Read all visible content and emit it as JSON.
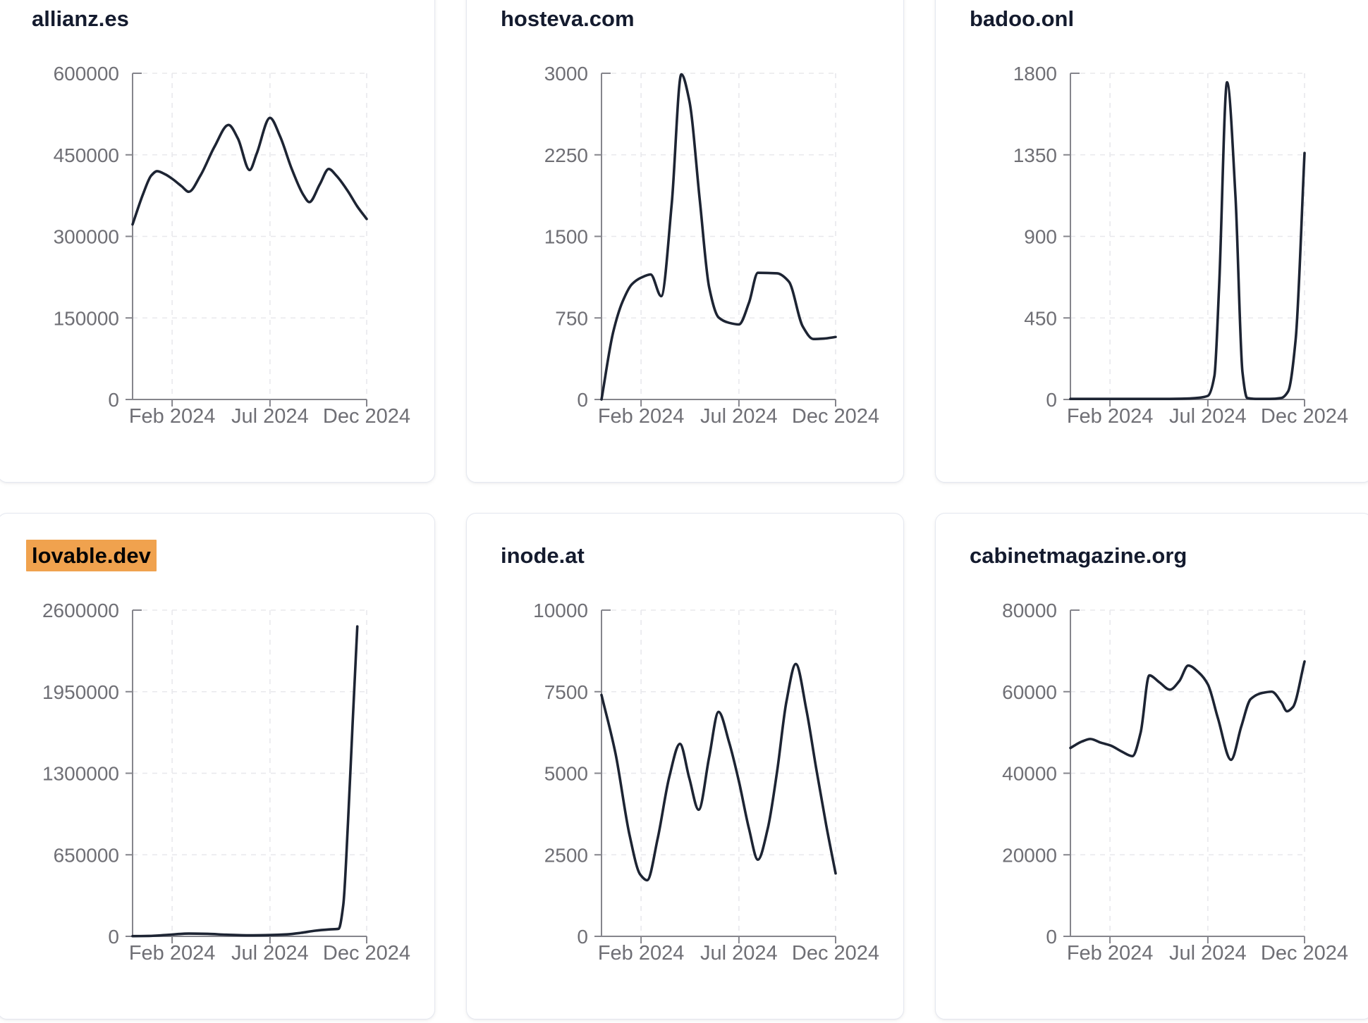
{
  "page": {
    "background": "#ffffff"
  },
  "theme": {
    "line_color": "#1d2433",
    "title_color": "#141b2e",
    "tick_label_color": "#6f6f75",
    "axis_color": "#85858c",
    "grid_color": "#e8e8ec",
    "card_border": "#e5e8f0",
    "highlight_background": "#f0a24e",
    "highlight_text": "#050505"
  },
  "chart_data": [
    {
      "type": "line",
      "title": "allianz.es",
      "title_highlighted": false,
      "xlabel": "",
      "ylabel": "",
      "legend": "none",
      "grid": "dashed",
      "x_ticks": [
        {
          "label": "Feb 2024",
          "pos": 0.169
        },
        {
          "label": "Jul 2024",
          "pos": 0.587
        },
        {
          "label": "Dec 2024",
          "pos": 1.0
        }
      ],
      "y_ticks": [
        0,
        150000,
        300000,
        450000,
        600000
      ],
      "y_max": 600000,
      "points": [
        [
          0,
          322000
        ],
        [
          0.045,
          378000
        ],
        [
          0.08,
          412000
        ],
        [
          0.105,
          420000
        ],
        [
          0.14,
          414000
        ],
        [
          0.169,
          406000
        ],
        [
          0.21,
          392000
        ],
        [
          0.24,
          382000
        ],
        [
          0.29,
          412000
        ],
        [
          0.35,
          465000
        ],
        [
          0.41,
          505000
        ],
        [
          0.45,
          480000
        ],
        [
          0.5,
          422000
        ],
        [
          0.53,
          452000
        ],
        [
          0.587,
          518000
        ],
        [
          0.63,
          484000
        ],
        [
          0.68,
          424000
        ],
        [
          0.73,
          376000
        ],
        [
          0.755,
          363000
        ],
        [
          0.8,
          396000
        ],
        [
          0.838,
          424000
        ],
        [
          0.87,
          412000
        ],
        [
          0.92,
          383000
        ],
        [
          0.96,
          355000
        ],
        [
          1,
          332000
        ]
      ]
    },
    {
      "type": "line",
      "title": "hosteva.com",
      "title_highlighted": false,
      "xlabel": "",
      "ylabel": "",
      "legend": "none",
      "grid": "dashed",
      "x_ticks": [
        {
          "label": "Feb 2024",
          "pos": 0.169
        },
        {
          "label": "Jul 2024",
          "pos": 0.587
        },
        {
          "label": "Dec 2024",
          "pos": 1.0
        }
      ],
      "y_ticks": [
        0,
        750,
        1500,
        2250,
        3000
      ],
      "y_max": 3000,
      "points": [
        [
          0,
          0
        ],
        [
          0.05,
          620
        ],
        [
          0.09,
          900
        ],
        [
          0.13,
          1060
        ],
        [
          0.169,
          1120
        ],
        [
          0.21,
          1150
        ],
        [
          0.255,
          950
        ],
        [
          0.3,
          1800
        ],
        [
          0.341,
          2990
        ],
        [
          0.375,
          2750
        ],
        [
          0.42,
          1830
        ],
        [
          0.46,
          1030
        ],
        [
          0.5,
          755
        ],
        [
          0.545,
          705
        ],
        [
          0.587,
          690
        ],
        [
          0.63,
          890
        ],
        [
          0.668,
          1165
        ],
        [
          0.75,
          1160
        ],
        [
          0.8,
          1085
        ],
        [
          0.86,
          670
        ],
        [
          0.905,
          556
        ],
        [
          0.95,
          560
        ],
        [
          1,
          575
        ]
      ]
    },
    {
      "type": "line",
      "title": "badoo.onl",
      "title_highlighted": false,
      "xlabel": "",
      "ylabel": "",
      "legend": "none",
      "grid": "dashed",
      "x_ticks": [
        {
          "label": "Feb 2024",
          "pos": 0.169
        },
        {
          "label": "Jul 2024",
          "pos": 0.587
        },
        {
          "label": "Dec 2024",
          "pos": 1.0
        }
      ],
      "y_ticks": [
        0,
        450,
        900,
        1350,
        1800
      ],
      "y_max": 1800,
      "points": [
        [
          0,
          3
        ],
        [
          0.1,
          3
        ],
        [
          0.2,
          3
        ],
        [
          0.3,
          3
        ],
        [
          0.4,
          3
        ],
        [
          0.5,
          5
        ],
        [
          0.545,
          9
        ],
        [
          0.587,
          20
        ],
        [
          0.615,
          130
        ],
        [
          0.635,
          620
        ],
        [
          0.669,
          1750
        ],
        [
          0.705,
          1120
        ],
        [
          0.735,
          150
        ],
        [
          0.755,
          8
        ],
        [
          0.8,
          3
        ],
        [
          0.85,
          3
        ],
        [
          0.9,
          8
        ],
        [
          0.93,
          45
        ],
        [
          0.962,
          330
        ],
        [
          1,
          1360
        ]
      ]
    },
    {
      "type": "line",
      "title": "lovable.dev",
      "title_highlighted": true,
      "xlabel": "",
      "ylabel": "",
      "legend": "none",
      "grid": "dashed",
      "x_ticks": [
        {
          "label": "Feb 2024",
          "pos": 0.169
        },
        {
          "label": "Jul 2024",
          "pos": 0.587
        },
        {
          "label": "Dec 2024",
          "pos": 1.0
        }
      ],
      "y_ticks": [
        0,
        650000,
        1300000,
        1950000,
        2600000
      ],
      "y_max": 2600000,
      "points": [
        [
          0,
          1500
        ],
        [
          0.07,
          3000
        ],
        [
          0.15,
          12000
        ],
        [
          0.24,
          22000
        ],
        [
          0.32,
          20000
        ],
        [
          0.4,
          13000
        ],
        [
          0.5,
          8000
        ],
        [
          0.58,
          10000
        ],
        [
          0.66,
          16000
        ],
        [
          0.72,
          28000
        ],
        [
          0.78,
          45000
        ],
        [
          0.84,
          55000
        ],
        [
          0.88,
          60000
        ],
        [
          0.9,
          250000
        ],
        [
          0.92,
          900000
        ],
        [
          0.94,
          1700000
        ],
        [
          0.96,
          2470000
        ]
      ]
    },
    {
      "type": "line",
      "title": "inode.at",
      "title_highlighted": false,
      "xlabel": "",
      "ylabel": "",
      "legend": "none",
      "grid": "dashed",
      "x_ticks": [
        {
          "label": "Feb 2024",
          "pos": 0.169
        },
        {
          "label": "Jul 2024",
          "pos": 0.587
        },
        {
          "label": "Dec 2024",
          "pos": 1.0
        }
      ],
      "y_ticks": [
        0,
        2500,
        5000,
        7500,
        10000
      ],
      "y_max": 10000,
      "points": [
        [
          0,
          7400
        ],
        [
          0.06,
          5600
        ],
        [
          0.12,
          3100
        ],
        [
          0.165,
          1900
        ],
        [
          0.195,
          1720
        ],
        [
          0.24,
          3000
        ],
        [
          0.29,
          4900
        ],
        [
          0.335,
          5900
        ],
        [
          0.375,
          4850
        ],
        [
          0.415,
          3880
        ],
        [
          0.46,
          5500
        ],
        [
          0.5,
          6880
        ],
        [
          0.545,
          5950
        ],
        [
          0.587,
          4750
        ],
        [
          0.63,
          3300
        ],
        [
          0.668,
          2350
        ],
        [
          0.71,
          3300
        ],
        [
          0.75,
          5050
        ],
        [
          0.79,
          7200
        ],
        [
          0.83,
          8350
        ],
        [
          0.875,
          6950
        ],
        [
          0.917,
          5150
        ],
        [
          0.96,
          3400
        ],
        [
          1,
          1930
        ]
      ]
    },
    {
      "type": "line",
      "title": "cabinetmagazine.org",
      "title_highlighted": false,
      "xlabel": "",
      "ylabel": "",
      "legend": "none",
      "grid": "dashed",
      "x_ticks": [
        {
          "label": "Feb 2024",
          "pos": 0.169
        },
        {
          "label": "Jul 2024",
          "pos": 0.587
        },
        {
          "label": "Dec 2024",
          "pos": 1.0
        }
      ],
      "y_ticks": [
        0,
        20000,
        40000,
        60000,
        80000
      ],
      "y_max": 80000,
      "points": [
        [
          0,
          46200
        ],
        [
          0.05,
          47800
        ],
        [
          0.085,
          48400
        ],
        [
          0.13,
          47500
        ],
        [
          0.172,
          46800
        ],
        [
          0.22,
          45300
        ],
        [
          0.265,
          44200
        ],
        [
          0.3,
          50000
        ],
        [
          0.337,
          64000
        ],
        [
          0.38,
          62300
        ],
        [
          0.425,
          60500
        ],
        [
          0.465,
          62600
        ],
        [
          0.503,
          66400
        ],
        [
          0.55,
          64600
        ],
        [
          0.587,
          61800
        ],
        [
          0.63,
          53500
        ],
        [
          0.686,
          43300
        ],
        [
          0.73,
          51500
        ],
        [
          0.77,
          58200
        ],
        [
          0.82,
          59700
        ],
        [
          0.86,
          60000
        ],
        [
          0.9,
          57500
        ],
        [
          0.925,
          55200
        ],
        [
          0.95,
          56200
        ],
        [
          1,
          67400
        ]
      ]
    }
  ]
}
